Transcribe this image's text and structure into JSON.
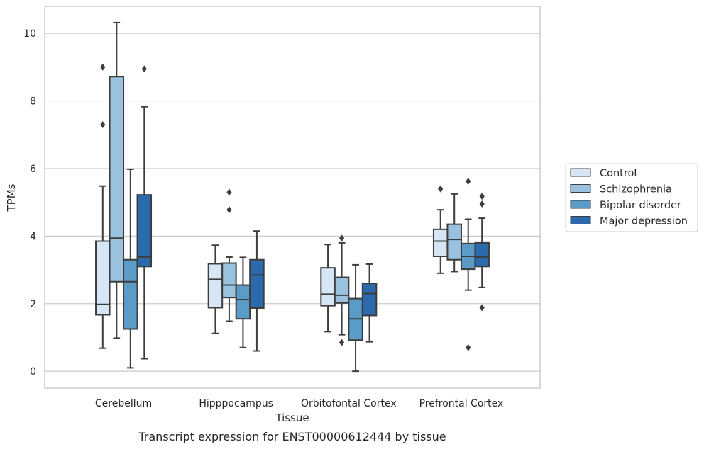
{
  "chart_data": {
    "type": "box",
    "caption": "Transcript expression for ENST00000612444 by tissue",
    "xlabel": "Tissue",
    "ylabel": "TPMs",
    "ylim": [
      -0.5,
      10.8
    ],
    "yticks": [
      0,
      2,
      4,
      6,
      8,
      10
    ],
    "grid": "horizontal",
    "legend_position": "right",
    "categories": [
      "Cerebellum",
      "Hipppocampus",
      "Orbitofontal Cortex",
      "Prefrontal Cortex"
    ],
    "series": [
      {
        "name": "Control",
        "color": "#d6e6f4",
        "boxes": [
          {
            "whisker_low": 0.68,
            "q1": 1.67,
            "median": 1.98,
            "q3": 3.85,
            "whisker_high": 5.48,
            "outliers": [
              7.3,
              9.0
            ]
          },
          {
            "whisker_low": 1.12,
            "q1": 1.88,
            "median": 2.72,
            "q3": 3.18,
            "whisker_high": 3.73,
            "outliers": []
          },
          {
            "whisker_low": 1.17,
            "q1": 1.94,
            "median": 2.28,
            "q3": 3.06,
            "whisker_high": 3.75,
            "outliers": []
          },
          {
            "whisker_low": 2.9,
            "q1": 3.4,
            "median": 3.85,
            "q3": 4.2,
            "whisker_high": 4.78,
            "outliers": [
              5.4
            ]
          }
        ]
      },
      {
        "name": "Schizophrenia",
        "color": "#9ac1dd",
        "boxes": [
          {
            "whisker_low": 0.98,
            "q1": 2.65,
            "median": 3.94,
            "q3": 8.72,
            "whisker_high": 10.32,
            "outliers": []
          },
          {
            "whisker_low": 1.48,
            "q1": 2.18,
            "median": 2.55,
            "q3": 3.2,
            "whisker_high": 3.38,
            "outliers": [
              4.78,
              5.3
            ]
          },
          {
            "whisker_low": 1.08,
            "q1": 2.02,
            "median": 2.25,
            "q3": 2.78,
            "whisker_high": 3.8,
            "outliers": [
              0.85,
              3.94
            ]
          },
          {
            "whisker_low": 2.95,
            "q1": 3.3,
            "median": 3.9,
            "q3": 4.35,
            "whisker_high": 5.25,
            "outliers": []
          }
        ]
      },
      {
        "name": "Bipolar disorder",
        "color": "#5b9bc8",
        "boxes": [
          {
            "whisker_low": 0.1,
            "q1": 1.25,
            "median": 2.65,
            "q3": 3.3,
            "whisker_high": 5.98,
            "outliers": []
          },
          {
            "whisker_low": 0.7,
            "q1": 1.55,
            "median": 2.12,
            "q3": 2.55,
            "whisker_high": 3.37,
            "outliers": []
          },
          {
            "whisker_low": 0.0,
            "q1": 0.92,
            "median": 1.55,
            "q3": 2.15,
            "whisker_high": 3.15,
            "outliers": []
          },
          {
            "whisker_low": 2.4,
            "q1": 3.02,
            "median": 3.4,
            "q3": 3.78,
            "whisker_high": 4.5,
            "outliers": [
              0.7,
              5.62
            ]
          }
        ]
      },
      {
        "name": "Major depression",
        "color": "#2a6aad",
        "boxes": [
          {
            "whisker_low": 0.37,
            "q1": 3.1,
            "median": 3.38,
            "q3": 5.22,
            "whisker_high": 7.83,
            "outliers": [
              8.95
            ]
          },
          {
            "whisker_low": 0.6,
            "q1": 1.87,
            "median": 2.85,
            "q3": 3.3,
            "whisker_high": 4.15,
            "outliers": []
          },
          {
            "whisker_low": 0.87,
            "q1": 1.65,
            "median": 2.3,
            "q3": 2.6,
            "whisker_high": 3.17,
            "outliers": []
          },
          {
            "whisker_low": 2.48,
            "q1": 3.1,
            "median": 3.38,
            "q3": 3.8,
            "whisker_high": 4.53,
            "outliers": [
              1.88,
              4.95,
              5.18
            ]
          }
        ]
      }
    ]
  }
}
